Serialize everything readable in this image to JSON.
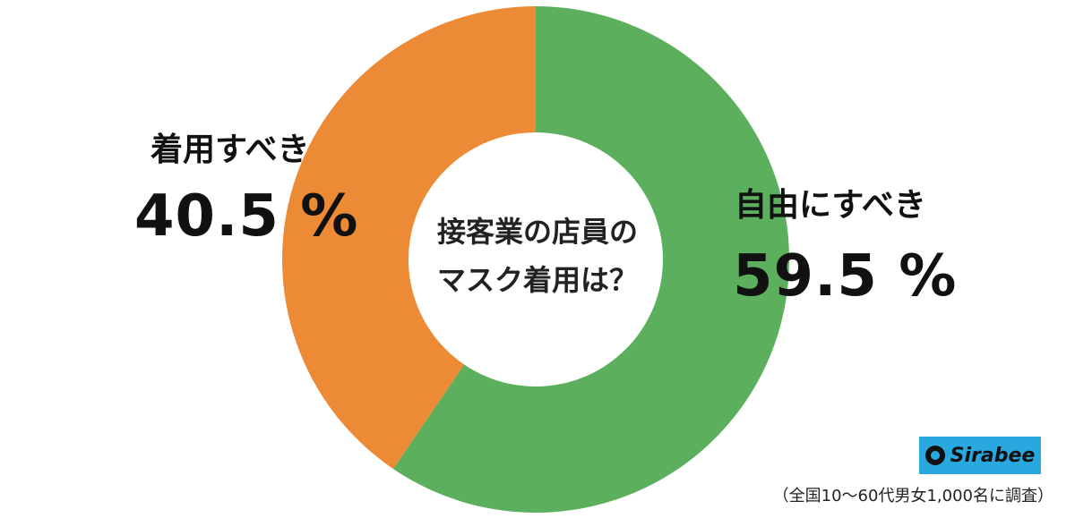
{
  "chart_data": {
    "type": "pie",
    "title": "接客業の店員のマスク着用は？",
    "title_lines": [
      "接客業の店員の",
      "マスク着用は？"
    ],
    "donut": true,
    "slices": [
      {
        "label": "自由にすべき",
        "value": 59.5,
        "value_text": "59.5 %",
        "color": "#5cb05d"
      },
      {
        "label": "着用すべき",
        "value": 40.5,
        "value_text": "40.5 %",
        "color": "#ec8a35"
      }
    ]
  },
  "logo": {
    "text": "Sirabee",
    "color": "#29a8e0"
  },
  "note": "（全国10〜60代男女1,000名に調査）"
}
